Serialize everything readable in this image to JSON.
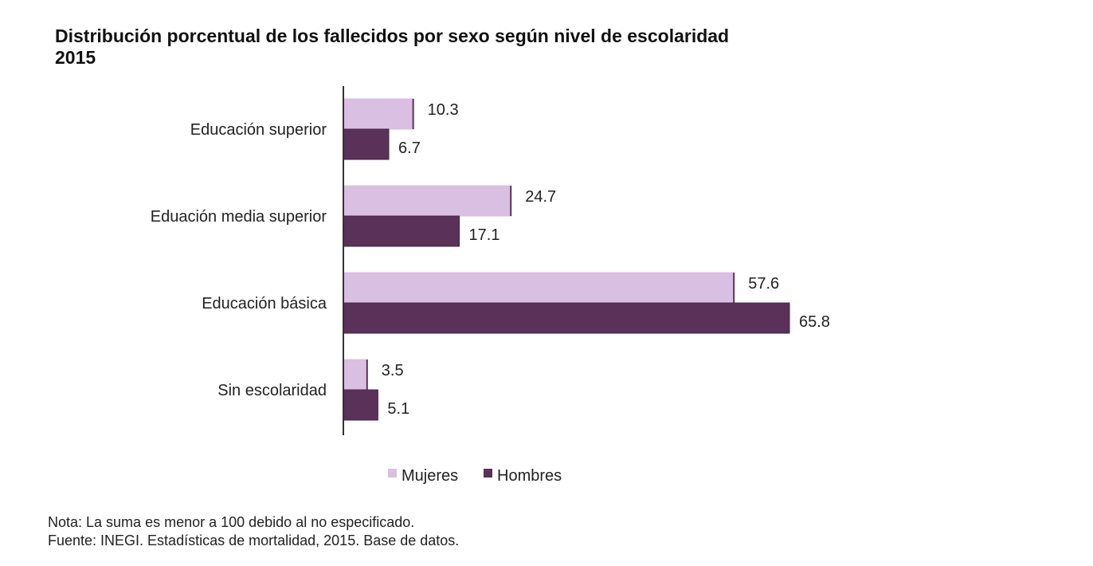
{
  "chart_data": {
    "type": "bar",
    "orientation": "horizontal",
    "title": "Distribución porcentual de los fallecidos por sexo según nivel de escolaridad",
    "subtitle": "2015",
    "categories": [
      "Educación superior",
      "Eduación media superior",
      "Educación básica",
      "Sin escolaridad"
    ],
    "series": [
      {
        "name": "Mujeres",
        "values": [
          10.3,
          24.7,
          57.6,
          3.5
        ],
        "labels": [
          "10.3",
          "24.7",
          "57.6",
          "3.5"
        ],
        "color": "#D9BFE2"
      },
      {
        "name": "Hombres",
        "values": [
          6.7,
          17.1,
          65.8,
          5.1
        ],
        "labels": [
          "6.7",
          "17.1",
          "65.8",
          "5.1"
        ],
        "color": "#5A3158"
      }
    ],
    "xlim": [
      0,
      70
    ],
    "grid": false,
    "legend": "bottom"
  },
  "notes": {
    "nota": "Nota: La suma es menor a 100 debido al no especificado.",
    "fuente": "Fuente: INEGI. Estadísticas de mortalidad, 2015. Base de datos."
  }
}
